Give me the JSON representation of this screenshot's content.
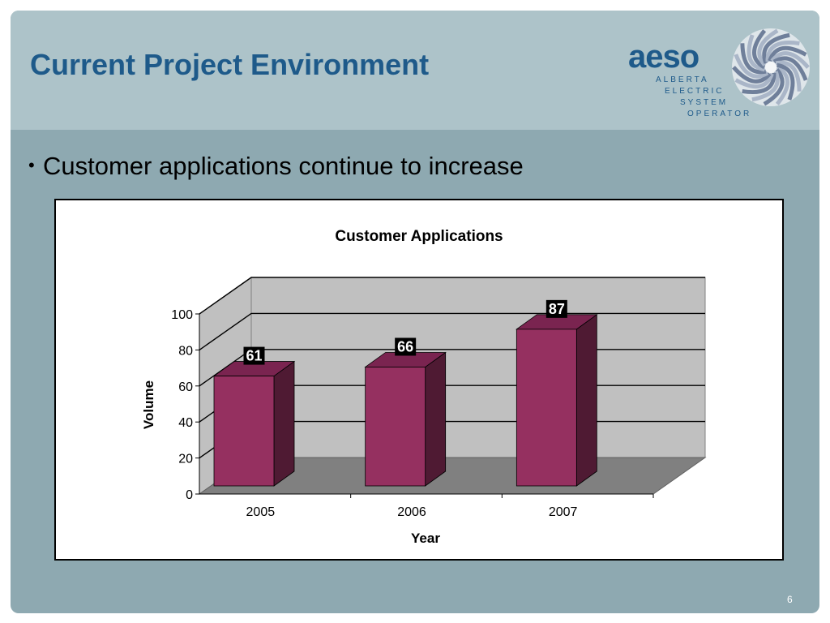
{
  "slide": {
    "title": "Current Project Environment",
    "bullet": "Customer applications continue to increase",
    "page_number": "6"
  },
  "logo": {
    "wordmark": "aeso",
    "lines": [
      "ALBERTA",
      "ELECTRIC",
      "SYSTEM",
      "OPERATOR"
    ]
  },
  "colors": {
    "title": "#1e5a8a",
    "bar_front": "#953060",
    "bar_side": "#4f1a33",
    "bar_top": "#7a2450",
    "chart_wall": "#c0c0c0",
    "chart_floor": "#808080"
  },
  "chart_data": {
    "type": "bar",
    "title": "Customer Applications",
    "categories": [
      "2005",
      "2006",
      "2007"
    ],
    "values": [
      61,
      66,
      87
    ],
    "data_labels": [
      "61",
      "66",
      "87"
    ],
    "xlabel": "Year",
    "ylabel": "Volume",
    "ylim": [
      0,
      100
    ],
    "yticks": [
      "0",
      "20",
      "40",
      "60",
      "80",
      "100"
    ],
    "grid": true,
    "legend": "none",
    "style": "3d"
  }
}
